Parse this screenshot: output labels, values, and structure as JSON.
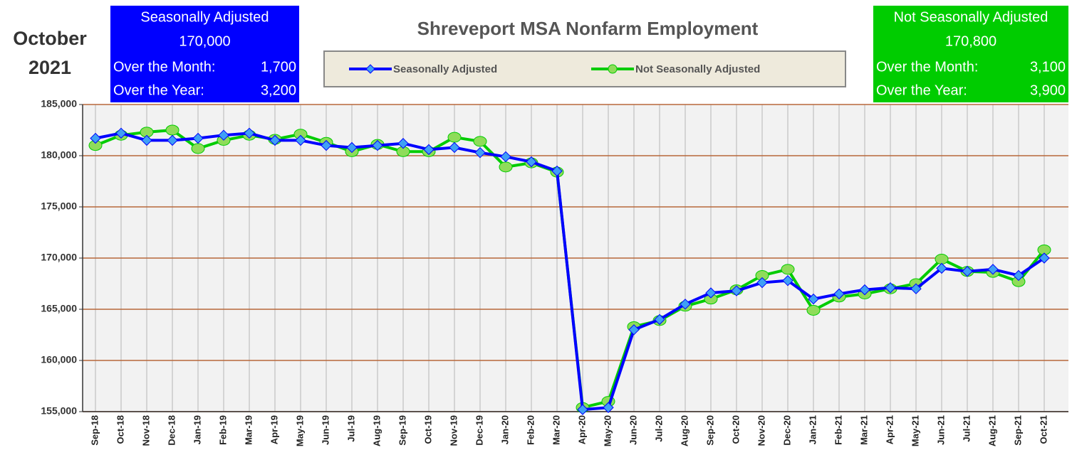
{
  "chart_data": {
    "type": "line",
    "title": "Shreveport MSA Nonfarm Employment",
    "period": [
      "October",
      "2021"
    ],
    "summary_boxes": [
      {
        "title": "Seasonally Adjusted",
        "value": "170,000",
        "color": "#0000ff",
        "rows": [
          [
            "Over the Month:",
            "1,700"
          ],
          [
            "Over the Year:",
            "3,200"
          ]
        ]
      },
      {
        "title": "Not Seasonally Adjusted",
        "value": "170,800",
        "color": "#00cc00",
        "rows": [
          [
            "Over the Month:",
            "3,100"
          ],
          [
            "Over the Year:",
            "3,900"
          ]
        ]
      }
    ],
    "categories": [
      "Sep-18",
      "Oct-18",
      "Nov-18",
      "Dec-18",
      "Jan-19",
      "Feb-19",
      "Mar-19",
      "Apr-19",
      "May-19",
      "Jun-19",
      "Jul-19",
      "Aug-19",
      "Sep-19",
      "Oct-19",
      "Nov-19",
      "Dec-19",
      "Jan-20",
      "Feb-20",
      "Mar-20",
      "Apr-20",
      "May-20",
      "Jun-20",
      "Jul-20",
      "Aug-20",
      "Sep-20",
      "Oct-20",
      "Nov-20",
      "Dec-20",
      "Jan-21",
      "Feb-21",
      "Mar-21",
      "Apr-21",
      "May-21",
      "Jun-21",
      "Jul-21",
      "Aug-21",
      "Sep-21",
      "Oct-21"
    ],
    "series": [
      {
        "name": "Seasonally Adjusted",
        "color": "#0000ff",
        "marker_color": "#3fa0f5",
        "values": [
          181700,
          182200,
          181500,
          181500,
          181700,
          182000,
          182200,
          181500,
          181500,
          181000,
          180800,
          181000,
          181200,
          180600,
          180800,
          180300,
          179900,
          179400,
          178500,
          155200,
          155400,
          163000,
          164000,
          165500,
          166600,
          166800,
          167600,
          167800,
          166000,
          166500,
          166900,
          167100,
          167000,
          169000,
          168700,
          168900,
          168300,
          170000
        ]
      },
      {
        "name": "Not Seasonally Adjusted",
        "color": "#00cc00",
        "marker_color": "#8fdc5a",
        "values": [
          181000,
          182000,
          182300,
          182500,
          180700,
          181500,
          182000,
          181600,
          182100,
          181300,
          180400,
          181100,
          180400,
          180400,
          181800,
          181400,
          178900,
          179300,
          178400,
          155400,
          156000,
          163300,
          163900,
          165300,
          166000,
          166900,
          168300,
          168900,
          164900,
          166200,
          166500,
          167000,
          167500,
          169900,
          168700,
          168600,
          167700,
          170800
        ]
      }
    ],
    "ylim": [
      155000,
      185000
    ],
    "yticks": [
      {
        "value": 155000,
        "label": "155,000"
      },
      {
        "value": 160000,
        "label": "160,000"
      },
      {
        "value": 165000,
        "label": "165,000"
      },
      {
        "value": 170000,
        "label": "170,000"
      },
      {
        "value": 175000,
        "label": "175,000"
      },
      {
        "value": 180000,
        "label": "180,000"
      },
      {
        "value": 185000,
        "label": "185,000"
      }
    ],
    "grid": true
  }
}
